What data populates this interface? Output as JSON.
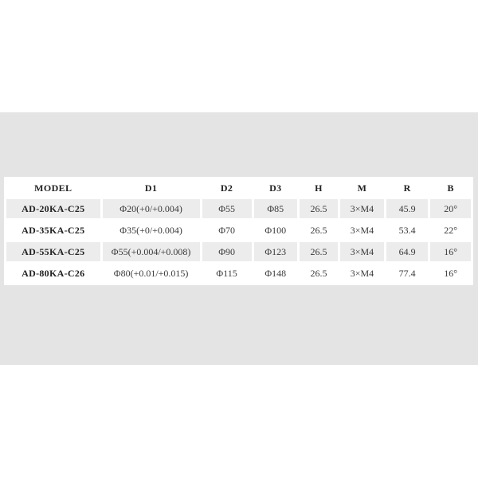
{
  "colors": {
    "page_bg": "#ffffff",
    "panel_bg": "#e4e4e4",
    "table_bg": "#ffffff",
    "row_stripe": "#ececec",
    "header_text": "#222222",
    "value_text": "#3a3a3a"
  },
  "table": {
    "columns": [
      "MODEL",
      "D1",
      "D2",
      "D3",
      "H",
      "M",
      "R",
      "B"
    ],
    "rows": [
      [
        "AD-20KA-C25",
        "Φ20(+0/+0.004)",
        "Φ55",
        "Φ85",
        "26.5",
        "3×M4",
        "45.9",
        "20°"
      ],
      [
        "AD-35KA-C25",
        "Φ35(+0/+0.004)",
        "Φ70",
        "Φ100",
        "26.5",
        "3×M4",
        "53.4",
        "22°"
      ],
      [
        "AD-55KA-C25",
        "Φ55(+0.004/+0.008)",
        "Φ90",
        "Φ123",
        "26.5",
        "3×M4",
        "64.9",
        "16°"
      ],
      [
        "AD-80KA-C26",
        "Φ80(+0.01/+0.015)",
        "Φ115",
        "Φ148",
        "26.5",
        "3×M4",
        "77.4",
        "16°"
      ]
    ]
  }
}
